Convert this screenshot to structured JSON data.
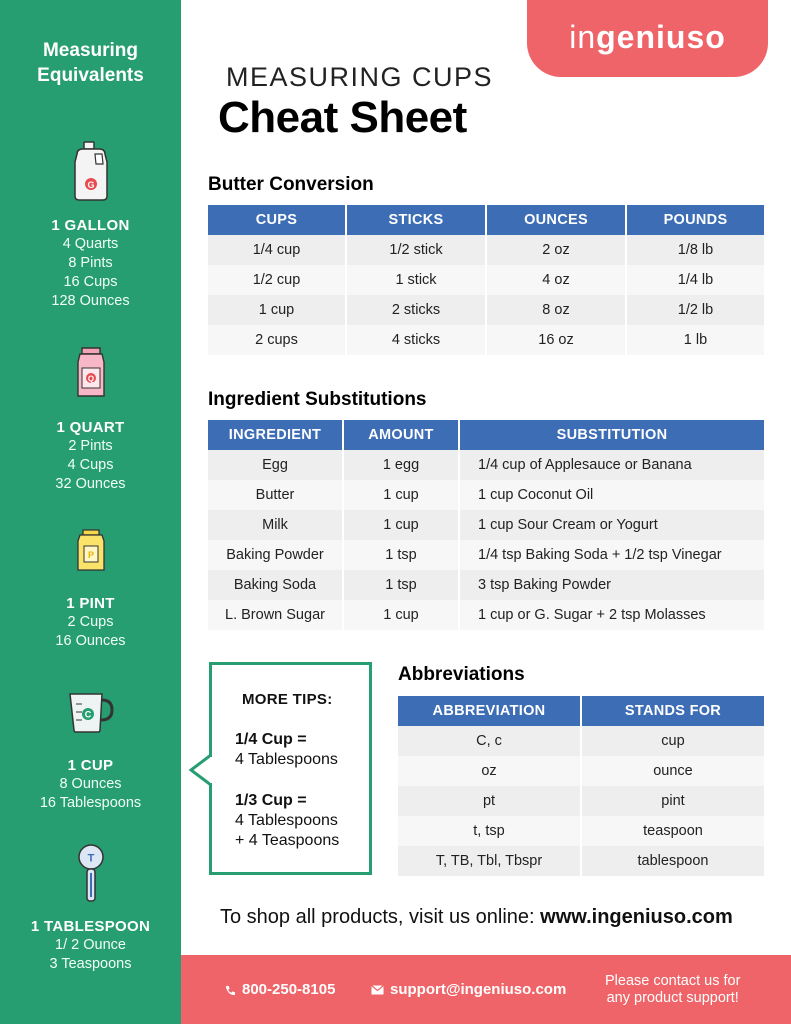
{
  "sidebar": {
    "title_line1": "Measuring",
    "title_line2": "Equivalents",
    "items": [
      {
        "title": "1 GALLON",
        "lines": [
          "4 Quarts",
          "8 Pints",
          "16 Cups",
          "128 Ounces"
        ],
        "icon": "gallon-jug-icon",
        "letter": "G"
      },
      {
        "title": "1 QUART",
        "lines": [
          "2 Pints",
          "4 Cups",
          "32 Ounces"
        ],
        "icon": "quart-carton-icon",
        "letter": "Q"
      },
      {
        "title": "1 PINT",
        "lines": [
          "2 Cups",
          "16 Ounces"
        ],
        "icon": "pint-carton-icon",
        "letter": "P"
      },
      {
        "title": "1 CUP",
        "lines": [
          "8 Ounces",
          "16 Tablespoons"
        ],
        "icon": "measuring-cup-icon",
        "letter": "C"
      },
      {
        "title": "1 TABLESPOON",
        "lines": [
          "1/ 2 Ounce",
          "3 Teaspoons"
        ],
        "icon": "tablespoon-icon",
        "letter": "T"
      }
    ]
  },
  "logo": {
    "prefix": "in",
    "bold": "geniuso"
  },
  "header": {
    "subtitle": "MEASURING CUPS",
    "title": "Cheat Sheet"
  },
  "butter": {
    "title": "Butter Conversion",
    "headers": [
      "CUPS",
      "STICKS",
      "OUNCES",
      "POUNDS"
    ],
    "rows": [
      [
        "1/4 cup",
        "1/2 stick",
        "2 oz",
        "1/8 lb"
      ],
      [
        "1/2 cup",
        "1 stick",
        "4 oz",
        "1/4 lb"
      ],
      [
        "1 cup",
        "2 sticks",
        "8 oz",
        "1/2 lb"
      ],
      [
        "2 cups",
        "4 sticks",
        "16 oz",
        "1 lb"
      ]
    ]
  },
  "substitutions": {
    "title": "Ingredient Substitutions",
    "headers": [
      "INGREDIENT",
      "AMOUNT",
      "SUBSTITUTION"
    ],
    "rows": [
      [
        "Egg",
        "1 egg",
        "1/4 cup of Applesauce or Banana"
      ],
      [
        "Butter",
        "1 cup",
        "1 cup Coconut Oil"
      ],
      [
        "Milk",
        "1 cup",
        "1 cup Sour Cream or Yogurt"
      ],
      [
        "Baking Powder",
        "1 tsp",
        "1/4 tsp Baking Soda + 1/2 tsp Vinegar"
      ],
      [
        "Baking Soda",
        "1 tsp",
        "3 tsp Baking Powder"
      ],
      [
        "L. Brown Sugar",
        "1 cup",
        "1 cup or G. Sugar + 2 tsp Molasses"
      ]
    ]
  },
  "tips": {
    "title": "MORE TIPS:",
    "tip1_bold": "1/4 Cup =",
    "tip1_rest": "4 Tablespoons",
    "tip2_bold": "1/3 Cup =",
    "tip2_line2": "4 Tablespoons",
    "tip2_line3": "+ 4 Teaspoons"
  },
  "abbreviations": {
    "title": "Abbreviations",
    "headers": [
      "ABBREVIATION",
      "STANDS FOR"
    ],
    "rows": [
      [
        "C, c",
        "cup"
      ],
      [
        "oz",
        "ounce"
      ],
      [
        "pt",
        "pint"
      ],
      [
        "t, tsp",
        "teaspoon"
      ],
      [
        "T, TB, Tbl, Tbspr",
        "tablespoon"
      ]
    ]
  },
  "shop": {
    "text": "To shop all products, visit us online: ",
    "url": "www.ingeniuso.com"
  },
  "footer": {
    "phone": "800-250-8105",
    "email": "support@ingeniuso.com",
    "note_line1": "Please contact us for",
    "note_line2": "any product support!"
  },
  "colors": {
    "green": "#279d72",
    "coral": "#ef6468",
    "blue": "#3d6db5"
  }
}
